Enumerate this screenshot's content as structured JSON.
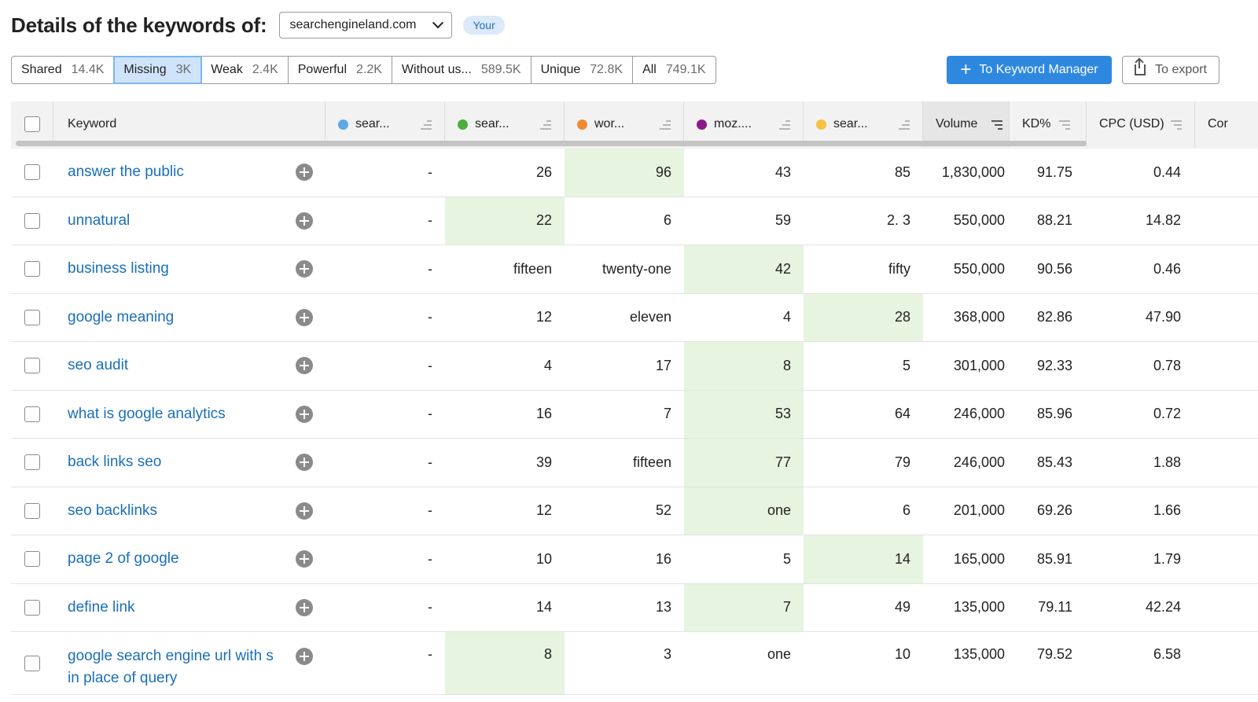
{
  "header": {
    "title": "Details of the keywords of:",
    "domain": "searchengineland.com",
    "badge": "Your"
  },
  "tabs": [
    {
      "label": "Shared",
      "count": "14.4K"
    },
    {
      "label": "Missing",
      "count": "3K"
    },
    {
      "label": "Weak",
      "count": "2.4K"
    },
    {
      "label": "Powerful",
      "count": "2.2K"
    },
    {
      "label": "Without us...",
      "count": "589.5K"
    },
    {
      "label": "Unique",
      "count": "72.8K"
    },
    {
      "label": "All",
      "count": "749.1K"
    }
  ],
  "active_tab": "Missing",
  "actions": {
    "keyword_manager": "To Keyword Manager",
    "export": "To export"
  },
  "columns": {
    "keyword": "Keyword",
    "domains": [
      {
        "label": "sear...",
        "color": "#5aa9e6"
      },
      {
        "label": "sear...",
        "color": "#4cae3c"
      },
      {
        "label": "wor...",
        "color": "#f08a35"
      },
      {
        "label": "moz....",
        "color": "#8b1a8b"
      },
      {
        "label": "sear...",
        "color": "#f5c242"
      }
    ],
    "volume": "Volume",
    "kd": "KD%",
    "cpc": "CPC (USD)",
    "more": "Cor"
  },
  "rows": [
    {
      "keyword": "answer the public",
      "values": [
        "-",
        "26",
        "96",
        "43",
        "85"
      ],
      "highlight": 2,
      "volume": "1,830,000",
      "kd": "91.75",
      "cpc": "0.44"
    },
    {
      "keyword": "unnatural",
      "values": [
        "-",
        "22",
        "6",
        "59",
        "2. 3"
      ],
      "highlight": 1,
      "volume": "550,000",
      "kd": "88.21",
      "cpc": "14.82"
    },
    {
      "keyword": "business listing",
      "values": [
        "-",
        "fifteen",
        "twenty-one",
        "42",
        "fifty"
      ],
      "highlight": 3,
      "volume": "550,000",
      "kd": "90.56",
      "cpc": "0.46"
    },
    {
      "keyword": "google meaning",
      "values": [
        "-",
        "12",
        "eleven",
        "4",
        "28"
      ],
      "highlight": 4,
      "volume": "368,000",
      "kd": "82.86",
      "cpc": "47.90"
    },
    {
      "keyword": "seo audit",
      "values": [
        "-",
        "4",
        "17",
        "8",
        "5"
      ],
      "highlight": 3,
      "volume": "301,000",
      "kd": "92.33",
      "cpc": "0.78"
    },
    {
      "keyword": "what is google analytics",
      "values": [
        "-",
        "16",
        "7",
        "53",
        "64"
      ],
      "highlight": 3,
      "volume": "246,000",
      "kd": "85.96",
      "cpc": "0.72"
    },
    {
      "keyword": "back links seo",
      "values": [
        "-",
        "39",
        "fifteen",
        "77",
        "79"
      ],
      "highlight": 3,
      "volume": "246,000",
      "kd": "85.43",
      "cpc": "1.88"
    },
    {
      "keyword": "seo backlinks",
      "values": [
        "-",
        "12",
        "52",
        "one",
        "6"
      ],
      "highlight": 3,
      "volume": "201,000",
      "kd": "69.26",
      "cpc": "1.66"
    },
    {
      "keyword": "page 2 of google",
      "values": [
        "-",
        "10",
        "16",
        "5",
        "14"
      ],
      "highlight": 4,
      "volume": "165,000",
      "kd": "85.91",
      "cpc": "1.79"
    },
    {
      "keyword": "define link",
      "values": [
        "-",
        "14",
        "13",
        "7",
        "49"
      ],
      "highlight": 3,
      "volume": "135,000",
      "kd": "79.11",
      "cpc": "42.24"
    },
    {
      "keyword": "google search engine url with s in place of query",
      "values": [
        "-",
        "8",
        "3",
        "one",
        "10"
      ],
      "highlight": 1,
      "volume": "135,000",
      "kd": "79.52",
      "cpc": "6.58"
    }
  ]
}
